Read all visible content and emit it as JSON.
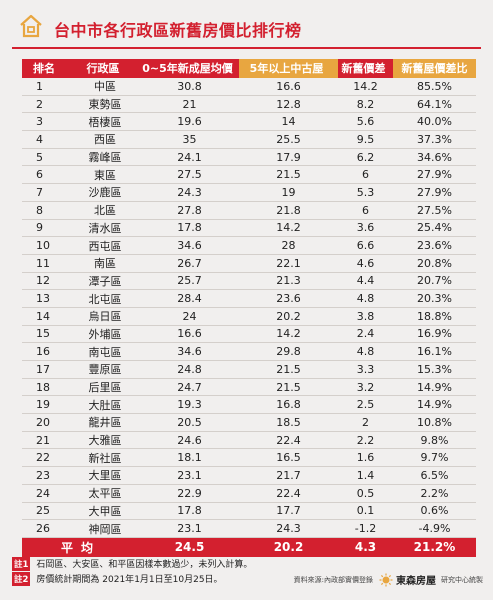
{
  "header": {
    "title": "台中市各行政區新舊房價比排行榜",
    "accent_color": "#d3202f",
    "secondary_color": "#e8a640",
    "icon": "house-icon"
  },
  "table": {
    "columns": [
      "排名",
      "行政區",
      "0~5年新成屋均價",
      "5年以上中古屋",
      "新舊價差",
      "新舊屋價差比"
    ],
    "rows": [
      [
        "1",
        "中區",
        "30.8",
        "16.6",
        "14.2",
        "85.5%"
      ],
      [
        "2",
        "東勢區",
        "21",
        "12.8",
        "8.2",
        "64.1%"
      ],
      [
        "3",
        "梧棲區",
        "19.6",
        "14",
        "5.6",
        "40.0%"
      ],
      [
        "4",
        "西區",
        "35",
        "25.5",
        "9.5",
        "37.3%"
      ],
      [
        "5",
        "霧峰區",
        "24.1",
        "17.9",
        "6.2",
        "34.6%"
      ],
      [
        "6",
        "東區",
        "27.5",
        "21.5",
        "6",
        "27.9%"
      ],
      [
        "7",
        "沙鹿區",
        "24.3",
        "19",
        "5.3",
        "27.9%"
      ],
      [
        "8",
        "北區",
        "27.8",
        "21.8",
        "6",
        "27.5%"
      ],
      [
        "9",
        "清水區",
        "17.8",
        "14.2",
        "3.6",
        "25.4%"
      ],
      [
        "10",
        "西屯區",
        "34.6",
        "28",
        "6.6",
        "23.6%"
      ],
      [
        "11",
        "南區",
        "26.7",
        "22.1",
        "4.6",
        "20.8%"
      ],
      [
        "12",
        "潭子區",
        "25.7",
        "21.3",
        "4.4",
        "20.7%"
      ],
      [
        "13",
        "北屯區",
        "28.4",
        "23.6",
        "4.8",
        "20.3%"
      ],
      [
        "14",
        "烏日區",
        "24",
        "20.2",
        "3.8",
        "18.8%"
      ],
      [
        "15",
        "外埔區",
        "16.6",
        "14.2",
        "2.4",
        "16.9%"
      ],
      [
        "16",
        "南屯區",
        "34.6",
        "29.8",
        "4.8",
        "16.1%"
      ],
      [
        "17",
        "豐原區",
        "24.8",
        "21.5",
        "3.3",
        "15.3%"
      ],
      [
        "18",
        "后里區",
        "24.7",
        "21.5",
        "3.2",
        "14.9%"
      ],
      [
        "19",
        "大肚區",
        "19.3",
        "16.8",
        "2.5",
        "14.9%"
      ],
      [
        "20",
        "龍井區",
        "20.5",
        "18.5",
        "2",
        "10.8%"
      ],
      [
        "21",
        "大雅區",
        "24.6",
        "22.4",
        "2.2",
        "9.8%"
      ],
      [
        "22",
        "新社區",
        "18.1",
        "16.5",
        "1.6",
        "9.7%"
      ],
      [
        "23",
        "大里區",
        "23.1",
        "21.7",
        "1.4",
        "6.5%"
      ],
      [
        "24",
        "太平區",
        "22.9",
        "22.4",
        "0.5",
        "2.2%"
      ],
      [
        "25",
        "大甲區",
        "17.8",
        "17.7",
        "0.1",
        "0.6%"
      ],
      [
        "26",
        "神岡區",
        "23.1",
        "24.3",
        "-1.2",
        "-4.9%"
      ]
    ],
    "average": {
      "label": "平均",
      "new_avg": "24.5",
      "old_avg": "20.2",
      "gap_avg": "4.3",
      "pct_avg": "21.2%"
    }
  },
  "notes": [
    {
      "tag": "註1",
      "text": "石岡區、大安區、和平區因樣本數過少，未列入計算。"
    },
    {
      "tag": "註2",
      "text": "房價統計期間為 2021年1月1日至10月25日。"
    }
  ],
  "footer": {
    "source": "資料來源:內政部實價登錄",
    "brand": "東森房屋",
    "dept": "研究中心統製",
    "logo_icon": "sun-logo-icon"
  }
}
